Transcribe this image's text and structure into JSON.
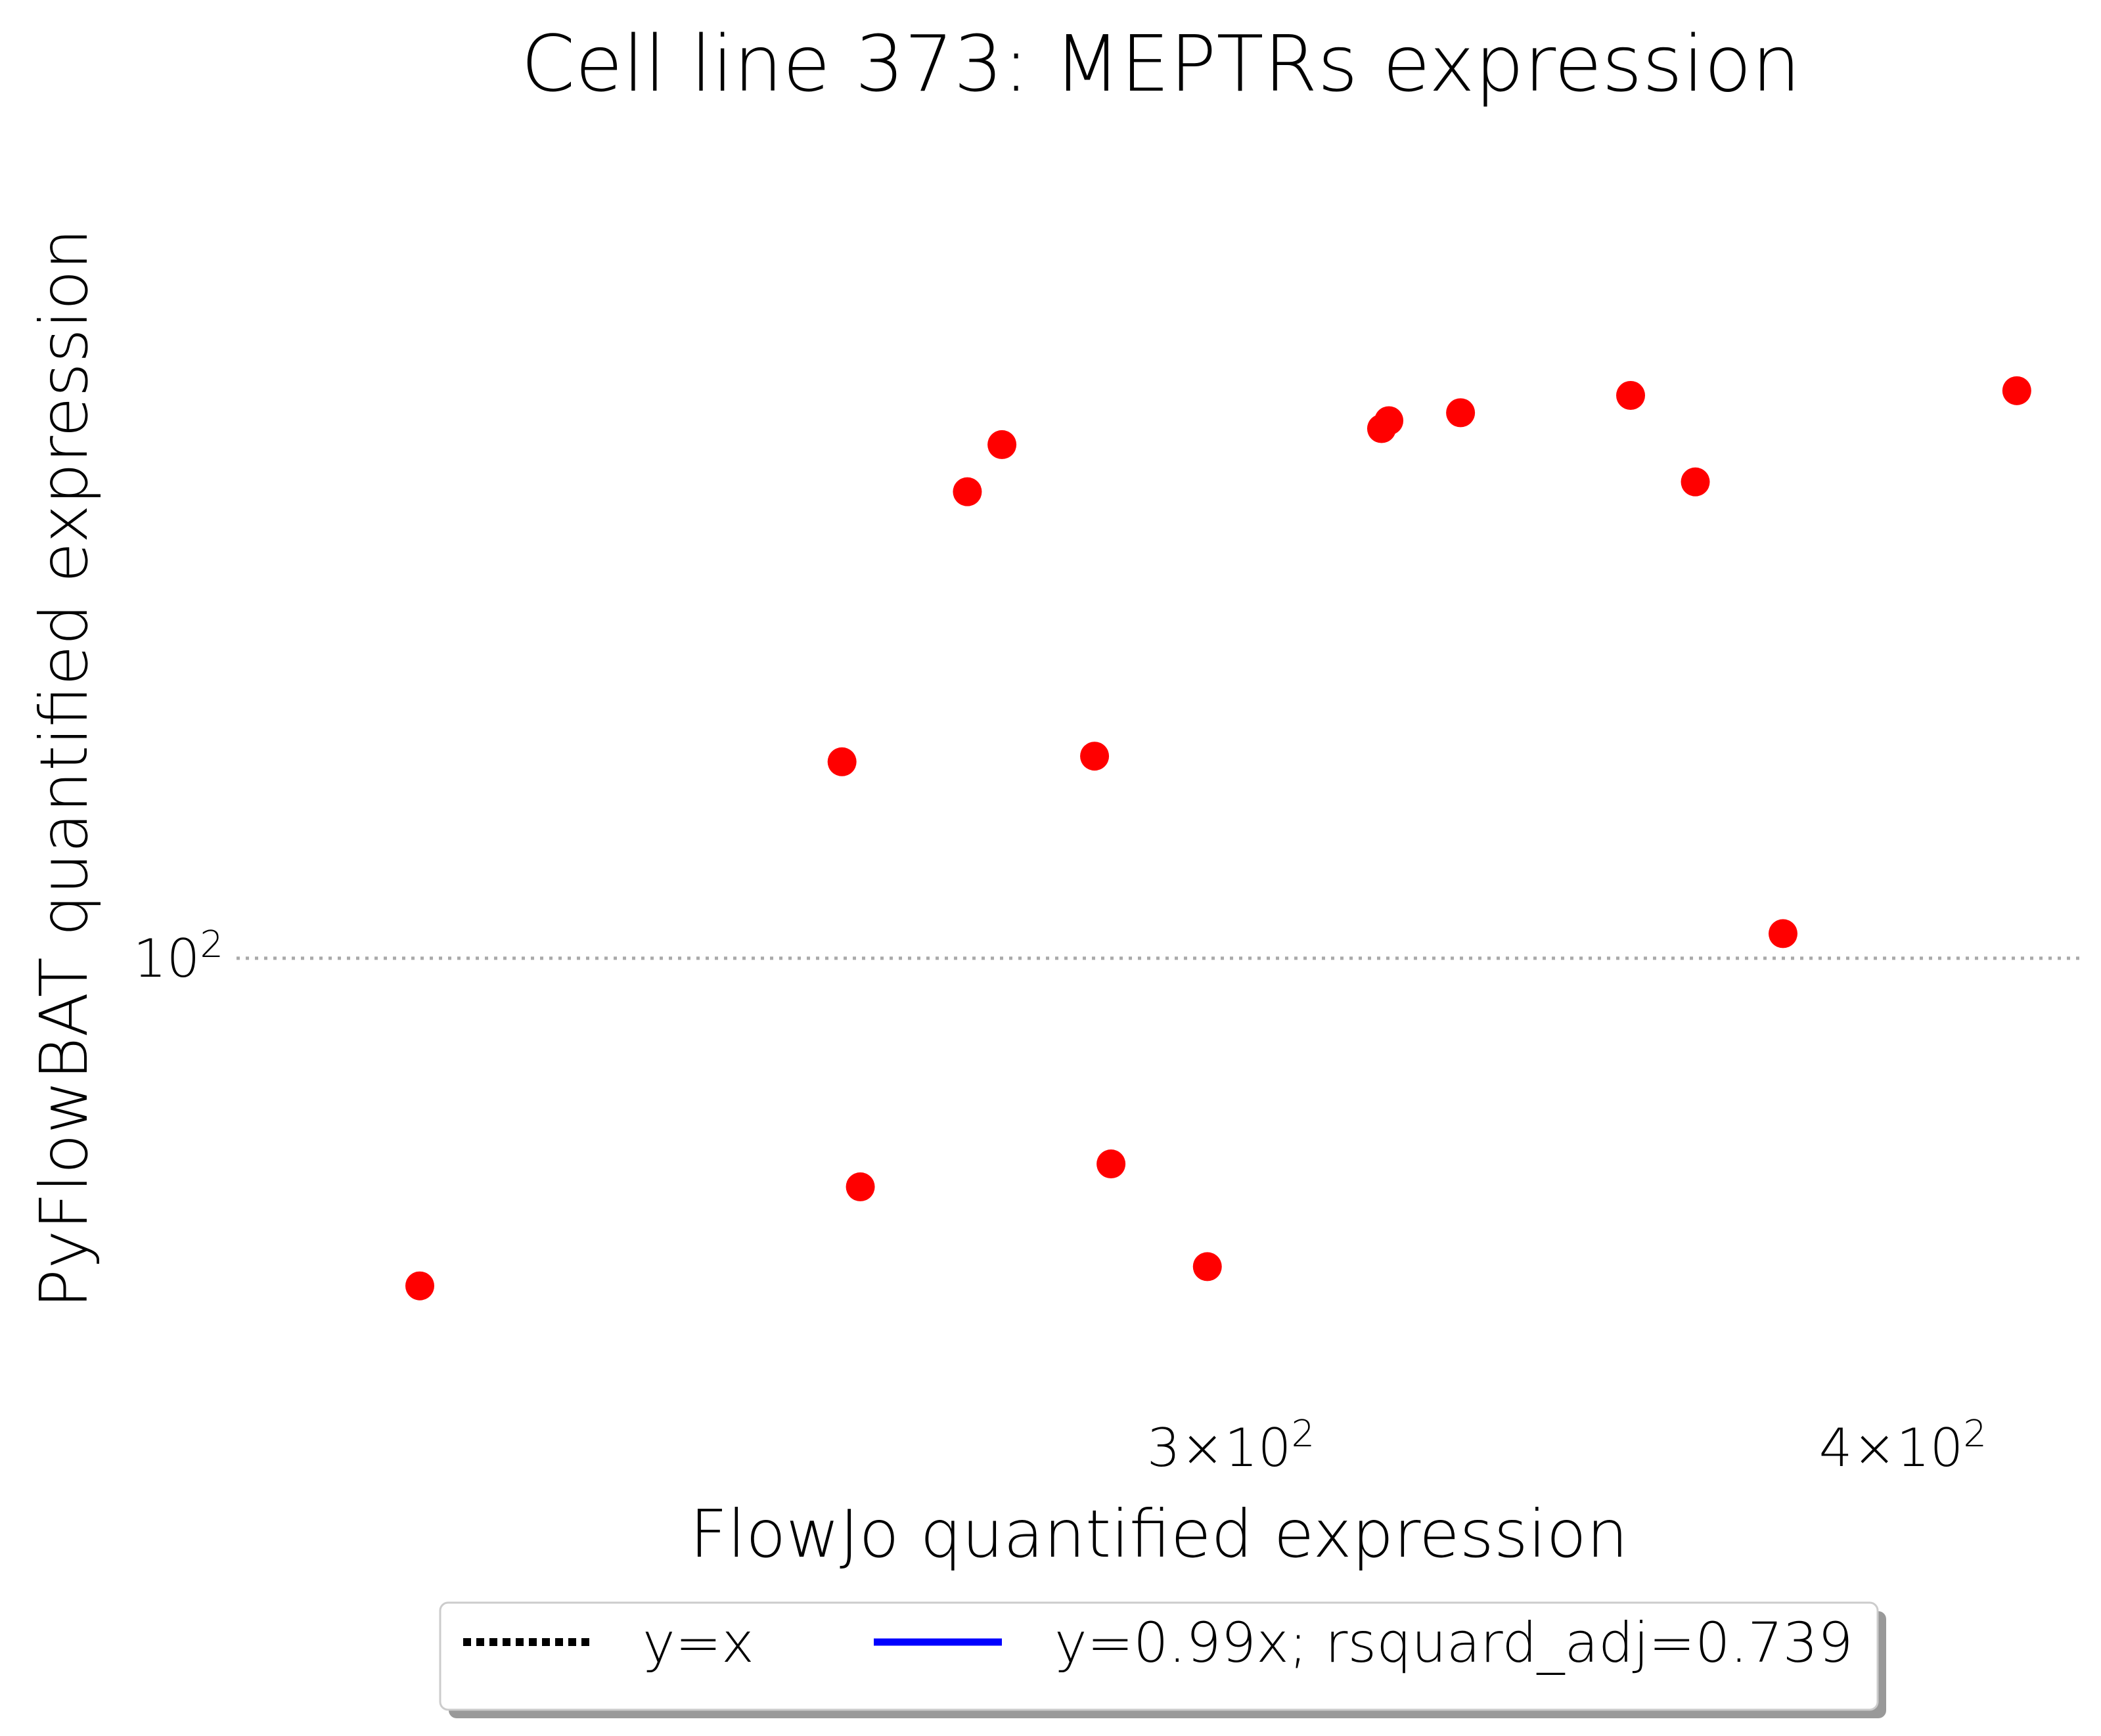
{
  "chart_data": {
    "type": "scatter",
    "title": "Cell line 373: MEPTRs expression",
    "xlabel": "FlowJo quantified expression",
    "ylabel": "PyFlowBAT quantified expression",
    "xscale": "log",
    "yscale": "log",
    "xlim": [
      196,
      432
    ],
    "ylim": [
      81,
      147
    ],
    "x_ticks": [
      {
        "value": 300,
        "label_base": "3×10",
        "label_exp": "2"
      },
      {
        "value": 400,
        "label_base": "4×10",
        "label_exp": "2"
      }
    ],
    "y_ticks": [
      {
        "value": 100,
        "label_base": "10",
        "label_exp": "2"
      }
    ],
    "grid": {
      "y_major": true,
      "style": "dotted",
      "color": "#aaaaaa"
    },
    "series": [
      {
        "kind": "points",
        "color": "#ff0000",
        "points": [
          {
            "x": 212,
            "y": 85.3
          },
          {
            "x": 254,
            "y": 110.0
          },
          {
            "x": 256,
            "y": 89.5
          },
          {
            "x": 268,
            "y": 125.4
          },
          {
            "x": 272,
            "y": 128.3
          },
          {
            "x": 283,
            "y": 110.3
          },
          {
            "x": 285,
            "y": 90.5
          },
          {
            "x": 297,
            "y": 86.1
          },
          {
            "x": 320,
            "y": 129.3
          },
          {
            "x": 321,
            "y": 129.8
          },
          {
            "x": 331,
            "y": 130.3
          },
          {
            "x": 356,
            "y": 131.4
          },
          {
            "x": 366,
            "y": 126.0
          },
          {
            "x": 380,
            "y": 101.2
          },
          {
            "x": 420,
            "y": 131.7
          }
        ]
      },
      {
        "kind": "line",
        "name": "y=x",
        "color": "#000000",
        "style": "dotted",
        "slope": 1.0,
        "x_range": [
          212,
          420
        ]
      },
      {
        "kind": "line",
        "name": "y=0.99x; rsquard_adj=0.739",
        "color": "#0000ff",
        "style": "solid",
        "slope": 0.99,
        "x_range": [
          212,
          420
        ]
      }
    ],
    "legend": {
      "placement": "bottom-center, below the plot",
      "entries": [
        {
          "label": "y=x",
          "color": "#000000",
          "style": "dotted"
        },
        {
          "label": "y=0.99x; rsquard_adj=0.739",
          "color": "#0000ff",
          "style": "solid"
        }
      ]
    }
  }
}
